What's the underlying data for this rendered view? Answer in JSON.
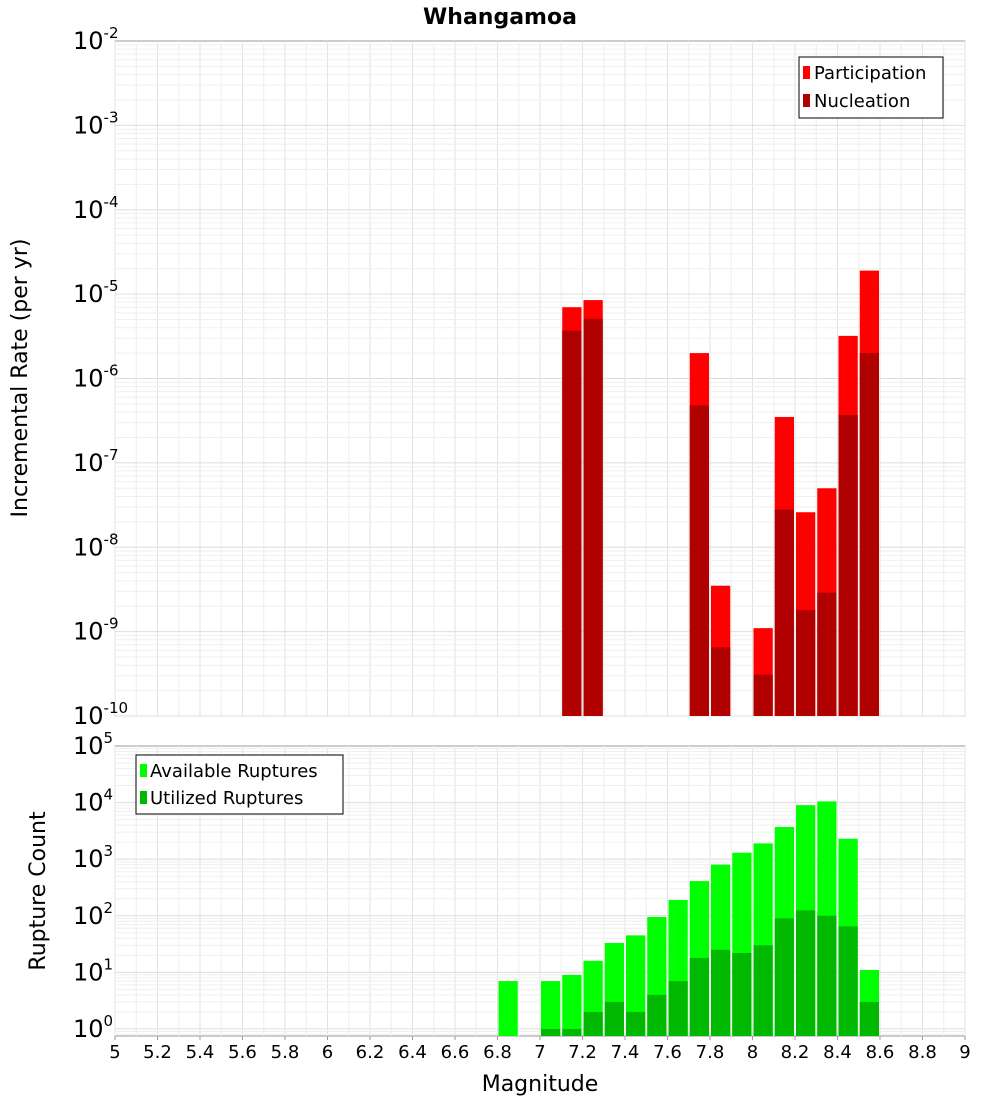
{
  "title": "Whangamoa",
  "colors": {
    "participation": "#ff0000",
    "nucleation": "#b00000",
    "available": "#00ff00",
    "utilized": "#00b800"
  },
  "chart_data": [
    {
      "type": "bar",
      "scale": "log",
      "ylabel": "Incremental Rate (per yr)",
      "xlabel": "",
      "xlim": [
        5,
        9
      ],
      "ylim": [
        1e-10,
        0.01
      ],
      "legend_position": "top-right",
      "grid": true,
      "bin_width": 0.1,
      "series": [
        {
          "name": "Participation",
          "x": [
            7.15,
            7.25,
            7.75,
            7.85,
            8.05,
            8.15,
            8.25,
            8.35,
            8.45,
            8.55
          ],
          "values": [
            7e-06,
            8.5e-06,
            2e-06,
            3.5e-09,
            1.1e-09,
            3.5e-07,
            2.6e-08,
            5e-08,
            3.2e-06,
            1.9e-05
          ]
        },
        {
          "name": "Nucleation",
          "x": [
            7.15,
            7.25,
            7.75,
            7.85,
            8.05,
            8.15,
            8.25,
            8.35,
            8.45,
            8.55
          ],
          "values": [
            3.7e-06,
            5.1e-06,
            4.8e-07,
            6.5e-10,
            3.1e-10,
            2.8e-08,
            1.8e-09,
            2.9e-09,
            3.7e-07,
            2e-06
          ]
        }
      ]
    },
    {
      "type": "bar",
      "scale": "log",
      "ylabel": "Rupture Count",
      "xlabel": "Magnitude",
      "xlim": [
        5,
        9
      ],
      "ylim": [
        0.75,
        100000.0
      ],
      "legend_position": "top-left",
      "grid": true,
      "bin_width": 0.1,
      "x_ticks": [
        5,
        5.2,
        5.4,
        5.6,
        5.8,
        6,
        6.2,
        6.4,
        6.6,
        6.8,
        7,
        7.2,
        7.4,
        7.6,
        7.8,
        8,
        8.2,
        8.4,
        8.6,
        8.8,
        9
      ],
      "series": [
        {
          "name": "Available Ruptures",
          "x": [
            6.85,
            7.05,
            7.15,
            7.25,
            7.35,
            7.45,
            7.55,
            7.65,
            7.75,
            7.85,
            7.95,
            8.05,
            8.15,
            8.25,
            8.35,
            8.45,
            8.55
          ],
          "values": [
            7,
            7,
            9,
            16,
            33,
            45,
            95,
            190,
            410,
            800,
            1300,
            1900,
            3700,
            9000,
            10500,
            2300,
            11
          ]
        },
        {
          "name": "Utilized Ruptures",
          "x": [
            7.05,
            7.15,
            7.25,
            7.35,
            7.45,
            7.55,
            7.65,
            7.75,
            7.85,
            7.95,
            8.05,
            8.15,
            8.25,
            8.35,
            8.45,
            8.55
          ],
          "values": [
            1,
            1,
            2,
            3,
            2,
            4,
            7,
            18,
            25,
            22,
            30,
            90,
            125,
            100,
            65,
            3
          ]
        }
      ]
    }
  ]
}
